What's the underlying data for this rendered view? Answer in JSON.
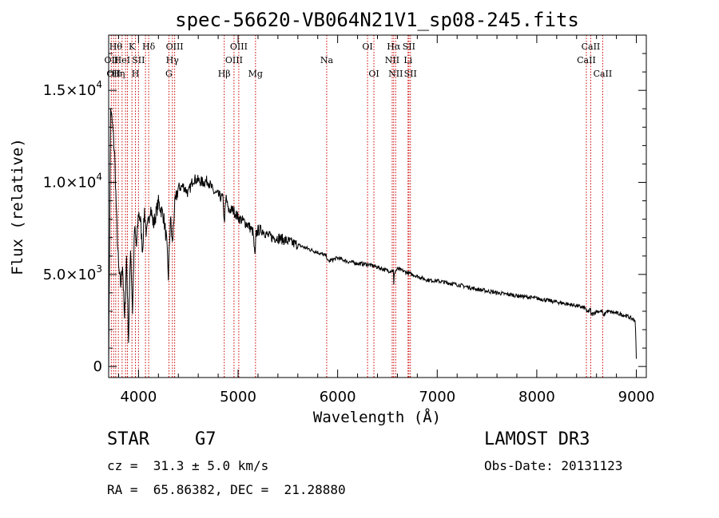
{
  "chart_data": {
    "type": "line",
    "title": "spec-56620-VB064N21V1_sp08-245.fits",
    "xlabel": "Wavelength (Å)",
    "ylabel": "Flux (relative)",
    "xlim": [
      3700,
      9100
    ],
    "ylim": [
      -600,
      18000
    ],
    "grid": false,
    "x_ticks": [
      4000,
      5000,
      6000,
      7000,
      8000,
      9000
    ],
    "x_tick_labels": [
      "4000",
      "5000",
      "6000",
      "7000",
      "8000",
      "9000"
    ],
    "y_ticks": [
      0,
      5000,
      10000,
      15000
    ],
    "y_tick_labels": [
      {
        "mant": "0",
        "exp": ""
      },
      {
        "mant": "5.0×10",
        "exp": "3"
      },
      {
        "mant": "1.0×10",
        "exp": "4"
      },
      {
        "mant": "1.5×10",
        "exp": "4"
      }
    ],
    "line_color": "#000000",
    "marker_color": "#cc0000",
    "series": [
      {
        "name": "flux",
        "x": [
          3700,
          3720,
          3740,
          3760,
          3780,
          3800,
          3820,
          3840,
          3860,
          3880,
          3900,
          3920,
          3940,
          3960,
          3980,
          4000,
          4020,
          4040,
          4060,
          4080,
          4100,
          4120,
          4150,
          4200,
          4250,
          4280,
          4300,
          4320,
          4340,
          4360,
          4380,
          4400,
          4450,
          4500,
          4550,
          4600,
          4650,
          4700,
          4750,
          4800,
          4850,
          4860,
          4880,
          4900,
          4950,
          5000,
          5050,
          5100,
          5150,
          5170,
          5180,
          5200,
          5250,
          5300,
          5350,
          5400,
          5500,
          5600,
          5700,
          5800,
          5890,
          5900,
          6000,
          6100,
          6200,
          6300,
          6400,
          6500,
          6560,
          6563,
          6570,
          6600,
          6700,
          6800,
          6900,
          7000,
          7200,
          7400,
          7600,
          7800,
          8000,
          8200,
          8400,
          8498,
          8500,
          8542,
          8545,
          8600,
          8662,
          8665,
          8700,
          8800,
          8900,
          8990,
          9000
        ],
        "y": [
          0,
          14000,
          13000,
          11500,
          8000,
          5300,
          4400,
          5600,
          2400,
          6000,
          1400,
          6600,
          3000,
          7500,
          6500,
          8400,
          7900,
          6300,
          8500,
          7100,
          7900,
          8700,
          7700,
          8900,
          8200,
          6900,
          4900,
          8100,
          6600,
          8600,
          9200,
          9700,
          9800,
          9400,
          10200,
          10100,
          10000,
          10100,
          9500,
          9300,
          9100,
          7800,
          9200,
          8500,
          8500,
          8100,
          7900,
          7700,
          7300,
          5800,
          7200,
          7400,
          7400,
          7100,
          7000,
          7000,
          6800,
          6600,
          6400,
          6200,
          6000,
          5700,
          5900,
          5700,
          5600,
          5550,
          5400,
          5200,
          5200,
          4300,
          5100,
          5300,
          5100,
          4900,
          4700,
          4650,
          4450,
          4200,
          4000,
          3850,
          3700,
          3500,
          3300,
          3150,
          2900,
          3100,
          2800,
          3000,
          3000,
          2700,
          3000,
          2900,
          2750,
          2500,
          400
        ]
      }
    ],
    "lines": [
      {
        "wl": 3727,
        "name": "OII",
        "row": 2
      },
      {
        "wl": 3750,
        "name": "OII",
        "row": 3
      },
      {
        "wl": 3771,
        "name": "Hθ",
        "row": 1
      },
      {
        "wl": 3798,
        "name": "Hη",
        "row": 3
      },
      {
        "wl": 3835,
        "name": "HeI",
        "row": 2
      },
      {
        "wl": 3870,
        "name": "",
        "row": 0
      },
      {
        "wl": 3889,
        "name": "",
        "row": 0
      },
      {
        "wl": 3934,
        "name": "K",
        "row": 1
      },
      {
        "wl": 3969,
        "name": "H",
        "row": 3
      },
      {
        "wl": 4000,
        "name": "SII",
        "row": 2
      },
      {
        "wl": 4070,
        "name": "",
        "row": 0
      },
      {
        "wl": 4102,
        "name": "Hδ",
        "row": 1
      },
      {
        "wl": 4305,
        "name": "G",
        "row": 3
      },
      {
        "wl": 4340,
        "name": "Hγ",
        "row": 2
      },
      {
        "wl": 4363,
        "name": "OIII",
        "row": 1
      },
      {
        "wl": 4861,
        "name": "Hβ",
        "row": 3
      },
      {
        "wl": 4959,
        "name": "OIII",
        "row": 2
      },
      {
        "wl": 5007,
        "name": "OIII",
        "row": 1
      },
      {
        "wl": 5175,
        "name": "Mg",
        "row": 3
      },
      {
        "wl": 5890,
        "name": "Na",
        "row": 2
      },
      {
        "wl": 6300,
        "name": "OI",
        "row": 1
      },
      {
        "wl": 6364,
        "name": "OI",
        "row": 3
      },
      {
        "wl": 6548,
        "name": "NII",
        "row": 2
      },
      {
        "wl": 6563,
        "name": "Hα",
        "row": 1
      },
      {
        "wl": 6583,
        "name": "NII",
        "row": 3
      },
      {
        "wl": 6707,
        "name": "Li",
        "row": 2
      },
      {
        "wl": 6716,
        "name": "SII",
        "row": 1
      },
      {
        "wl": 6731,
        "name": "SII",
        "row": 3
      },
      {
        "wl": 8498,
        "name": "CaII",
        "row": 2
      },
      {
        "wl": 8542,
        "name": "CaII",
        "row": 1
      },
      {
        "wl": 8662,
        "name": "CaII",
        "row": 3
      }
    ]
  },
  "info": {
    "object_class": "STAR",
    "subclass": "G7",
    "survey": "LAMOST DR3",
    "redshift": "cz =  31.3 ± 5.0 km/s",
    "obs_date": "Obs-Date: 20131123",
    "coords": "RA =  65.86382, DEC =  21.28880"
  }
}
